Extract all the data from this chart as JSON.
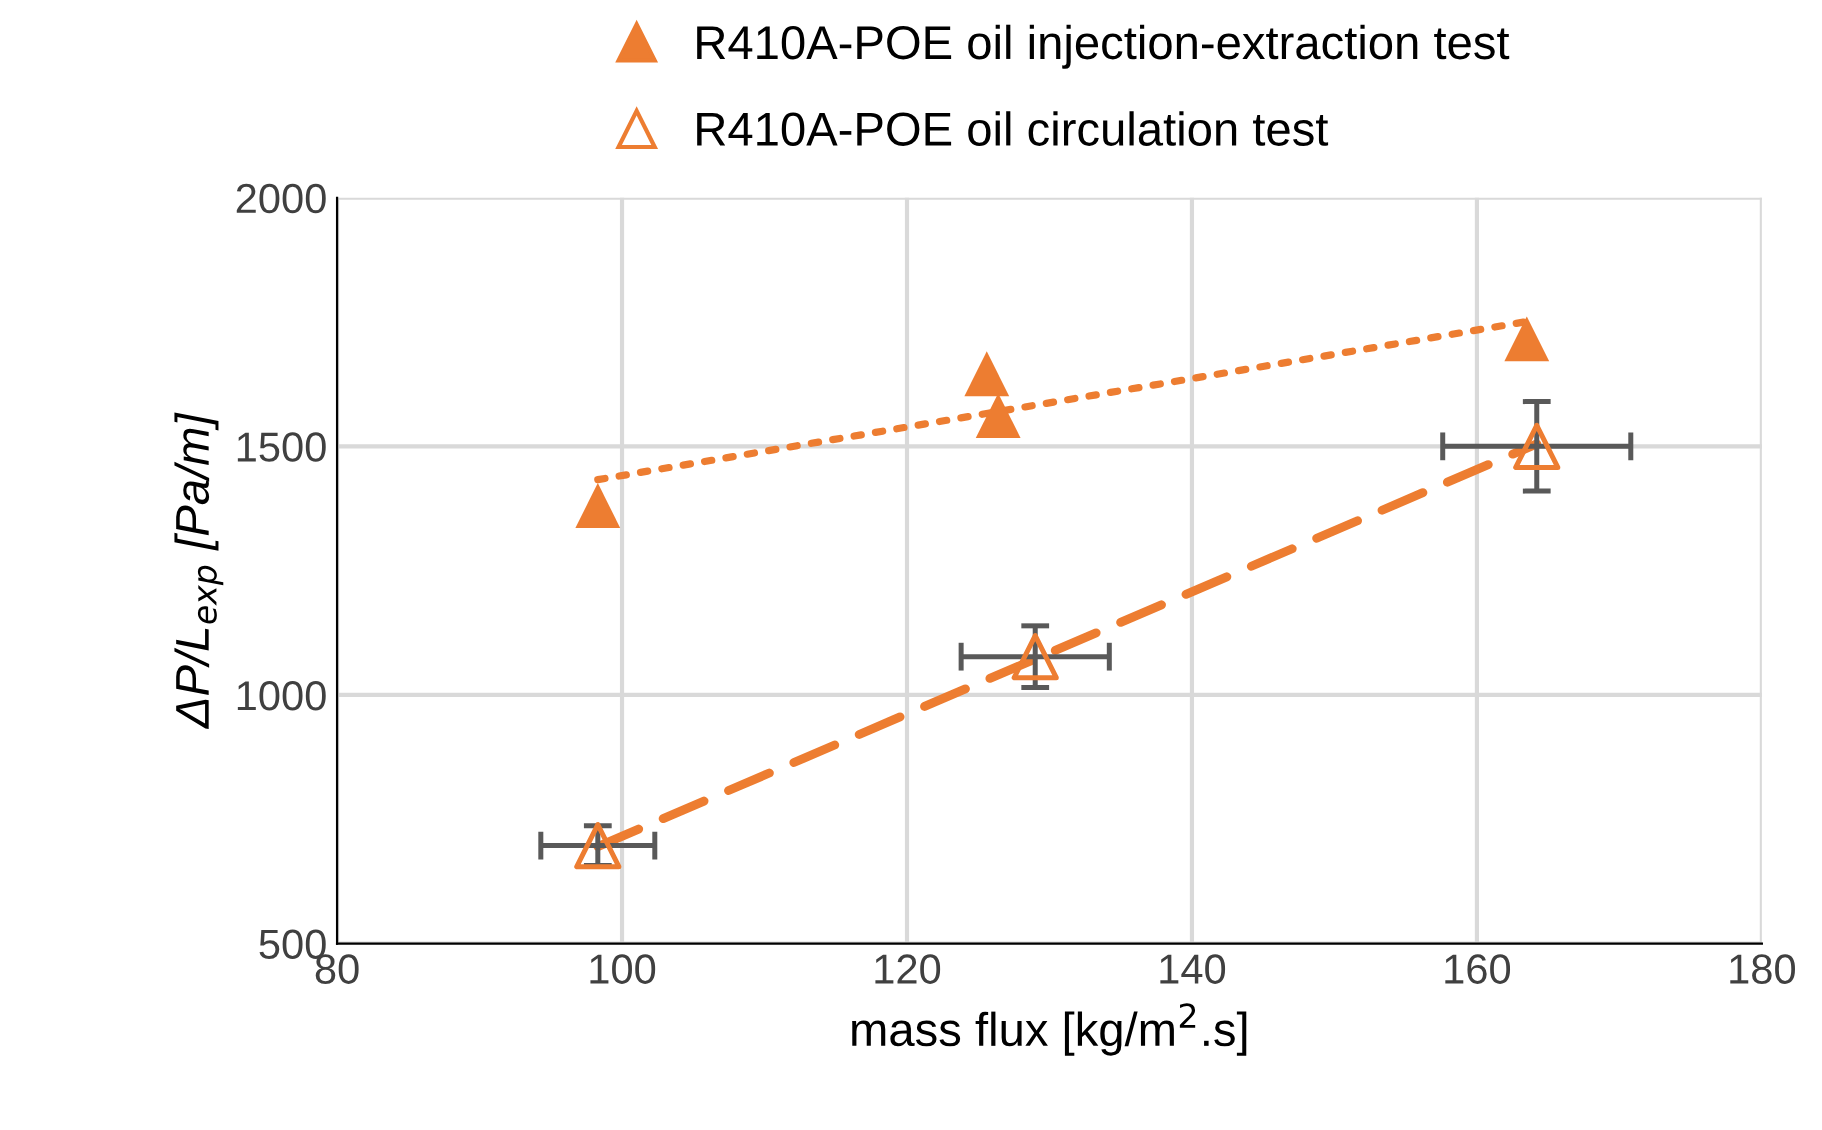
{
  "chart_data": {
    "type": "scatter",
    "xlabel": "mass flux [kg/m$^{2}$.s]",
    "ylabel": "ΔP/L$_{exp}$ [Pa/m]",
    "xlim": [
      80,
      180
    ],
    "xticks": [
      80,
      100,
      120,
      140,
      160,
      180
    ],
    "ylim": [
      500,
      2000
    ],
    "yticks": [
      500,
      1000,
      1500,
      2000
    ],
    "grid": true,
    "legend": "top",
    "series": [
      {
        "name": "R410A-POE oil injection-extraction test",
        "marker": "triangle",
        "color": "#ed7d31",
        "x": [
          98.3,
          125.6,
          126.4,
          163.5
        ],
        "values": [
          1381,
          1646,
          1562,
          1716
        ]
      },
      {
        "name": "R410A-POE oil circulation test",
        "marker": "triangle",
        "color": "#ed7d31",
        "x": [
          98.3,
          129.0,
          164.2
        ],
        "values": [
          697,
          1077,
          1500
        ],
        "errors": [
          40,
          62,
          90
        ],
        "xerrors": [
          4,
          5.2,
          6.6
        ]
      },
      {
        "type": "line",
        "line_style": "dotted",
        "marker": "none",
        "color": "#ed7d31",
        "x": [
          98.3,
          163.3
        ],
        "values": [
          1433,
          1750
        ]
      },
      {
        "type": "line",
        "line_style": "dashed",
        "marker": "none",
        "color": "#ed7d31",
        "x": [
          98.3,
          164.2
        ],
        "values": [
          695,
          1505
        ]
      }
    ]
  }
}
